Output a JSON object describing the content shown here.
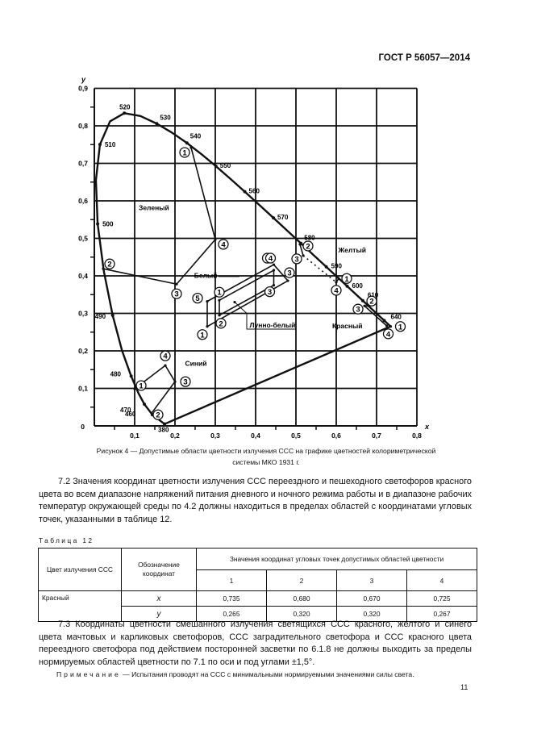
{
  "header": {
    "doc_id": "ГОСТ Р 56057—2014"
  },
  "figure": {
    "caption_line1": "Рисунок  4 — Допустимые области цветности излучения ССС на графике цветностей колориметрической",
    "caption_line2": "системы МКО 1931 г."
  },
  "chart_data": {
    "type": "diagram",
    "xlabel": "x",
    "ylabel": "y",
    "xlim": [
      0,
      0.8
    ],
    "ylim": [
      0,
      0.9
    ],
    "grid": true,
    "x_ticks": [
      "0,1",
      "0,2",
      "0,3",
      "0,4",
      "0,5",
      "0,6",
      "0,7",
      "0,8"
    ],
    "y_ticks": [
      "0,1",
      "0,2",
      "0,3",
      "0,4",
      "0,5",
      "0,6",
      "0,7",
      "0,8",
      "0,9"
    ],
    "origin_label": "0",
    "spectral_locus": [
      [
        0.1741,
        0.005
      ],
      [
        0.144,
        0.0297
      ],
      [
        0.1241,
        0.0578
      ],
      [
        0.1096,
        0.0868
      ],
      [
        0.0913,
        0.1327
      ],
      [
        0.0687,
        0.2007
      ],
      [
        0.0454,
        0.295
      ],
      [
        0.0235,
        0.4127
      ],
      [
        0.0082,
        0.5384
      ],
      [
        0.0039,
        0.6548
      ],
      [
        0.0139,
        0.7502
      ],
      [
        0.0389,
        0.812
      ],
      [
        0.0743,
        0.8338
      ],
      [
        0.1142,
        0.8262
      ],
      [
        0.1547,
        0.8059
      ],
      [
        0.1929,
        0.7816
      ],
      [
        0.2296,
        0.7543
      ],
      [
        0.2658,
        0.7243
      ],
      [
        0.3016,
        0.6923
      ],
      [
        0.3373,
        0.6589
      ],
      [
        0.3731,
        0.6245
      ],
      [
        0.4087,
        0.5896
      ],
      [
        0.4441,
        0.5547
      ],
      [
        0.4788,
        0.5202
      ],
      [
        0.5125,
        0.4866
      ],
      [
        0.5448,
        0.4544
      ],
      [
        0.5752,
        0.4242
      ],
      [
        0.6029,
        0.3965
      ],
      [
        0.627,
        0.3725
      ],
      [
        0.6482,
        0.3514
      ],
      [
        0.6658,
        0.334
      ],
      [
        0.6915,
        0.3083
      ],
      [
        0.719,
        0.2809
      ],
      [
        0.7347,
        0.2653
      ]
    ],
    "wavelength_labels": [
      {
        "nm": "380",
        "x": 0.1741,
        "y": 0.005
      },
      {
        "nm": "460",
        "x": 0.144,
        "y": 0.0297
      },
      {
        "nm": "470",
        "x": 0.1241,
        "y": 0.0578
      },
      {
        "nm": "480",
        "x": 0.0913,
        "y": 0.1327
      },
      {
        "nm": "490",
        "x": 0.0454,
        "y": 0.295
      },
      {
        "nm": "500",
        "x": 0.0082,
        "y": 0.5384
      },
      {
        "nm": "510",
        "x": 0.0139,
        "y": 0.7502
      },
      {
        "nm": "520",
        "x": 0.0743,
        "y": 0.8338
      },
      {
        "nm": "530",
        "x": 0.1547,
        "y": 0.8059
      },
      {
        "nm": "540",
        "x": 0.2296,
        "y": 0.7543
      },
      {
        "nm": "550",
        "x": 0.3016,
        "y": 0.6923
      },
      {
        "nm": "560",
        "x": 0.3731,
        "y": 0.6245
      },
      {
        "nm": "570",
        "x": 0.4441,
        "y": 0.5547
      },
      {
        "nm": "580",
        "x": 0.5125,
        "y": 0.4866
      },
      {
        "nm": "590",
        "x": 0.5752,
        "y": 0.4242
      },
      {
        "nm": "600",
        "x": 0.627,
        "y": 0.3725
      },
      {
        "nm": "610",
        "x": 0.6658,
        "y": 0.334
      },
      {
        "nm": "640",
        "x": 0.719,
        "y": 0.2809
      }
    ],
    "regions": [
      {
        "name": "Зеленый",
        "points": [
          {
            "n": "1",
            "x": 0.24,
            "y": 0.742
          },
          {
            "n": "2",
            "x": 0.022,
            "y": 0.419
          },
          {
            "n": "3",
            "x": 0.204,
            "y": 0.378
          },
          {
            "n": "4",
            "x": 0.3,
            "y": 0.497
          }
        ],
        "edges": [
          [
            "1",
            "4"
          ],
          [
            "4",
            "3"
          ],
          [
            "3",
            "2"
          ]
        ]
      },
      {
        "name": "Синий",
        "points": [
          {
            "n": "1",
            "x": 0.1,
            "y": 0.099
          },
          {
            "n": "2",
            "x": 0.142,
            "y": 0.034
          },
          {
            "n": "3",
            "x": 0.2,
            "y": 0.118
          },
          {
            "n": "4",
            "x": 0.176,
            "y": 0.161
          }
        ],
        "edges": [
          [
            "1",
            "4"
          ],
          [
            "4",
            "3"
          ],
          [
            "3",
            "2"
          ]
        ]
      },
      {
        "name": "Белый",
        "points": [
          {
            "n": "1",
            "x": 0.28,
            "y": 0.265
          },
          {
            "n": "3",
            "x": 0.48,
            "y": 0.387
          },
          {
            "n": "4",
            "x": 0.445,
            "y": 0.43
          },
          {
            "n": "5",
            "x": 0.28,
            "y": 0.332
          }
        ],
        "edges": [
          [
            "5",
            "1"
          ],
          [
            "1",
            "3"
          ],
          [
            "3",
            "4"
          ],
          [
            "4",
            "5"
          ]
        ]
      },
      {
        "name": "Лунно-белый",
        "points": [
          {
            "n": "1",
            "x": 0.31,
            "y": 0.335
          },
          {
            "n": "2",
            "x": 0.31,
            "y": 0.295
          },
          {
            "n": "3",
            "x": 0.445,
            "y": 0.375
          },
          {
            "n": "4",
            "x": 0.445,
            "y": 0.415
          }
        ],
        "edges": [
          [
            "1",
            "4"
          ],
          [
            "4",
            "3"
          ],
          [
            "3",
            "2"
          ],
          [
            "2",
            "1"
          ]
        ]
      },
      {
        "name": "Желтый",
        "points": [
          {
            "n": "1",
            "x": 0.606,
            "y": 0.393
          },
          {
            "n": "2",
            "x": 0.51,
            "y": 0.484
          },
          {
            "n": "3",
            "x": 0.518,
            "y": 0.454
          },
          {
            "n": "4",
            "x": 0.6,
            "y": 0.383
          }
        ],
        "edges": [
          [
            "2",
            "3"
          ],
          [
            "3",
            "4"
          ],
          [
            "4",
            "1"
          ]
        ]
      },
      {
        "name": "Красный",
        "points": [
          {
            "n": "1",
            "x": 0.735,
            "y": 0.265
          },
          {
            "n": "2",
            "x": 0.68,
            "y": 0.32
          },
          {
            "n": "3",
            "x": 0.67,
            "y": 0.32
          },
          {
            "n": "4",
            "x": 0.725,
            "y": 0.267
          }
        ],
        "edges": [
          [
            "2",
            "3"
          ],
          [
            "3",
            "4"
          ]
        ]
      }
    ]
  },
  "section_7_2": "7.2  Значения координат цветности излучения ССС переездного и пешеходного светофоров красного цвета во всем диапазоне напряжений питания дневного и ночного режима работы и в диапазоне рабочих температур окружающей среды по 4.2 должны находиться в пределах областей с координатами угловых точек, указанными в таблице 12.",
  "table": {
    "label": "Таблица 12",
    "col_color": "Цвет излучения ССС",
    "col_coord": "Обозначение координат",
    "col_values": "Значения координат угловых точек допустимых областей цветности",
    "points": [
      "1",
      "2",
      "3",
      "4"
    ],
    "rows": [
      {
        "color": "Красный",
        "coord": "x",
        "values": [
          "0,735",
          "0,680",
          "0,670",
          "0,725"
        ]
      },
      {
        "color": "",
        "coord": "y",
        "values": [
          "0,265",
          "0,320",
          "0,320",
          "0,267"
        ]
      }
    ]
  },
  "section_7_3": "7.3  Координаты цветности смешанного излучения светящихся ССС красного, желтого и синего цвета мачтовых и карликовых светофоров, ССС заградительного светофора и ССС красного цвета переездного светофора под действием посторонней засветки по 6.1.8 не должны выходить за пределы нормируемых областей цветности по 7.1 по оси и под углами ±1,5°.",
  "note": {
    "label": "Примечание",
    "text": " — Испытания проводят на ССС с минимальными нормируемыми значениями силы света."
  },
  "page_number": "11"
}
